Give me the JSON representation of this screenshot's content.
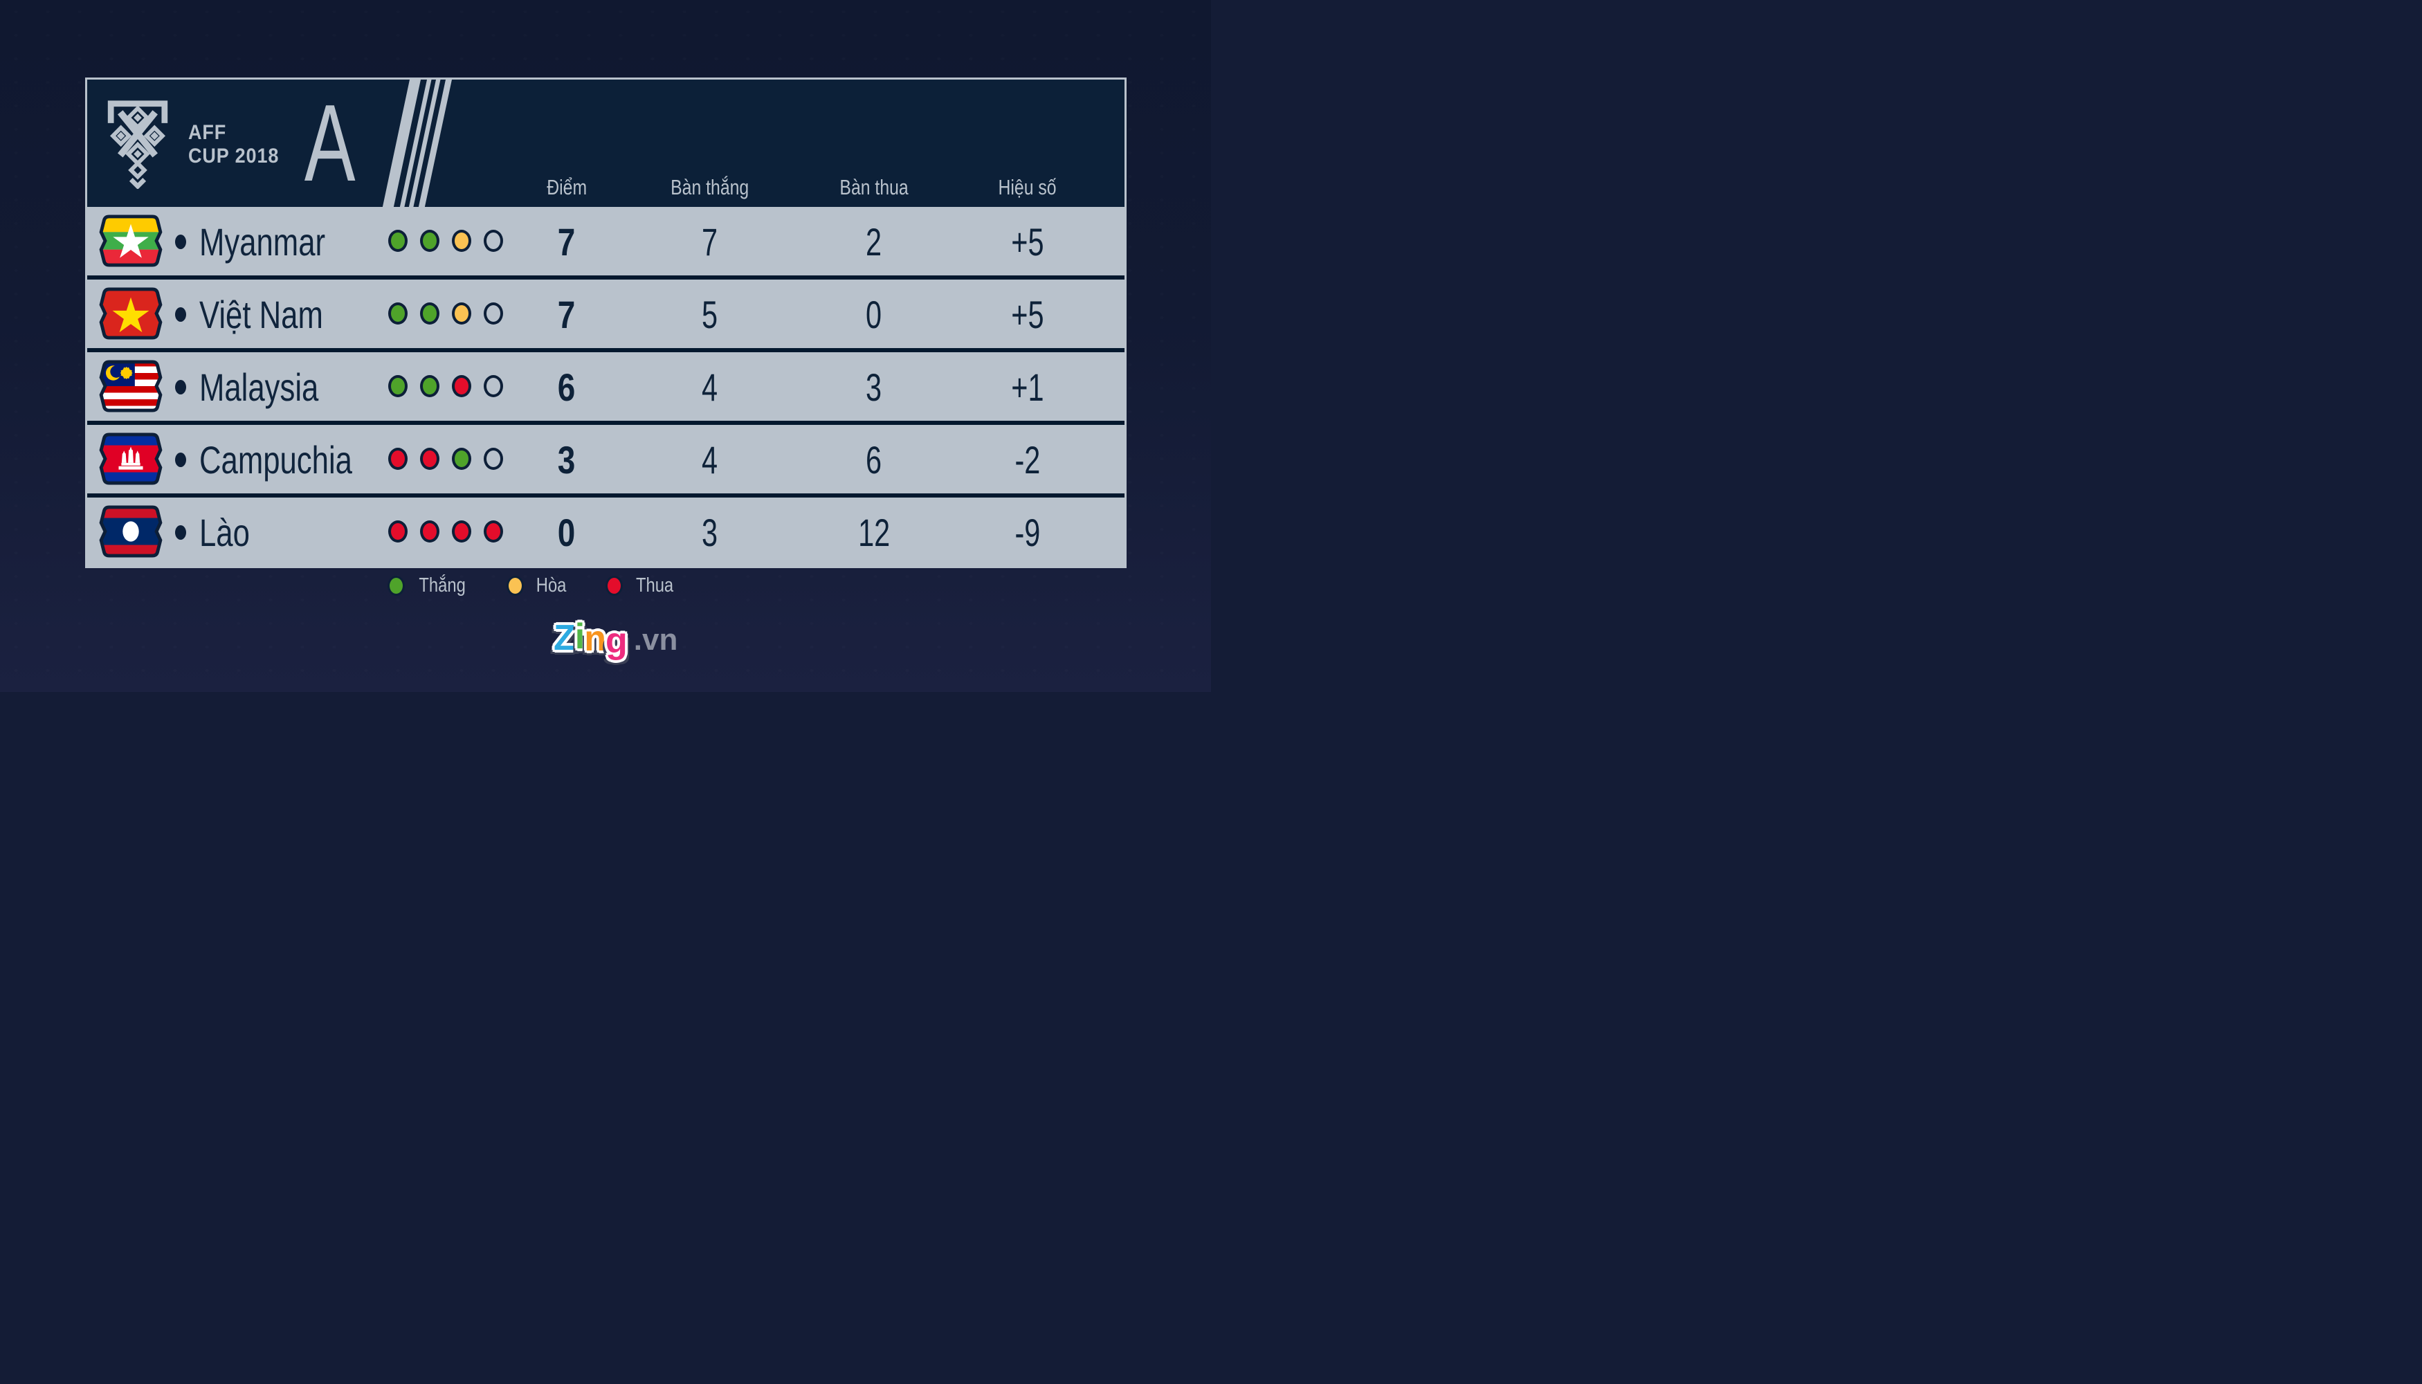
{
  "tournament": {
    "name_line1": "AFF",
    "name_line2": "CUP 2018",
    "group": "A"
  },
  "columns": {
    "points": "Điểm",
    "goals_for": "Bàn thắng",
    "goals_against": "Bàn thua",
    "goal_diff": "Hiệu số"
  },
  "teams": [
    {
      "name": "Myanmar",
      "flag": "myanmar",
      "results": [
        "win",
        "win",
        "draw",
        "empty"
      ],
      "points": "7",
      "goals_for": "7",
      "goals_against": "2",
      "goal_diff": "+5"
    },
    {
      "name": "Việt Nam",
      "flag": "vietnam",
      "results": [
        "win",
        "win",
        "draw",
        "empty"
      ],
      "points": "7",
      "goals_for": "5",
      "goals_against": "0",
      "goal_diff": "+5"
    },
    {
      "name": "Malaysia",
      "flag": "malaysia",
      "results": [
        "win",
        "win",
        "loss",
        "empty"
      ],
      "points": "6",
      "goals_for": "4",
      "goals_against": "3",
      "goal_diff": "+1"
    },
    {
      "name": "Campuchia",
      "flag": "cambodia",
      "results": [
        "loss",
        "loss",
        "win",
        "empty"
      ],
      "points": "3",
      "goals_for": "4",
      "goals_against": "6",
      "goal_diff": "-2"
    },
    {
      "name": "Lào",
      "flag": "laos",
      "results": [
        "loss",
        "loss",
        "loss",
        "loss"
      ],
      "points": "0",
      "goals_for": "3",
      "goals_against": "12",
      "goal_diff": "-9"
    }
  ],
  "legend": [
    {
      "label": "Thắng",
      "status": "win"
    },
    {
      "label": "Hòa",
      "status": "draw"
    },
    {
      "label": "Thua",
      "status": "loss"
    }
  ],
  "status_colors": {
    "win": "#4fa32a",
    "draw": "#fac253",
    "loss": "#e40d2b"
  },
  "branding": {
    "letters": [
      {
        "char": "Z",
        "color": "#2caae1"
      },
      {
        "char": "i",
        "color": "#53b748"
      },
      {
        "char": "n",
        "color": "#f7941e"
      },
      {
        "char": "g",
        "color": "#ed2d7f"
      }
    ],
    "suffix": ".vn"
  },
  "chart_data": {
    "type": "table",
    "title": "AFF CUP 2018 — Group A standings",
    "columns": [
      "Điểm",
      "Bàn thắng",
      "Bàn thua",
      "Hiệu số"
    ],
    "rows": [
      {
        "team": "Myanmar",
        "form": [
          "win",
          "win",
          "draw",
          "empty"
        ],
        "points": 7,
        "goals_for": 7,
        "goals_against": 2,
        "goal_diff": 5
      },
      {
        "team": "Việt Nam",
        "form": [
          "win",
          "win",
          "draw",
          "empty"
        ],
        "points": 7,
        "goals_for": 5,
        "goals_against": 0,
        "goal_diff": 5
      },
      {
        "team": "Malaysia",
        "form": [
          "win",
          "win",
          "loss",
          "empty"
        ],
        "points": 6,
        "goals_for": 4,
        "goals_against": 3,
        "goal_diff": 1
      },
      {
        "team": "Campuchia",
        "form": [
          "loss",
          "loss",
          "win",
          "empty"
        ],
        "points": 3,
        "goals_for": 4,
        "goals_against": 6,
        "goal_diff": -2
      },
      {
        "team": "Lào",
        "form": [
          "loss",
          "loss",
          "loss",
          "loss"
        ],
        "points": 0,
        "goals_for": 3,
        "goals_against": 12,
        "goal_diff": -9
      }
    ]
  }
}
